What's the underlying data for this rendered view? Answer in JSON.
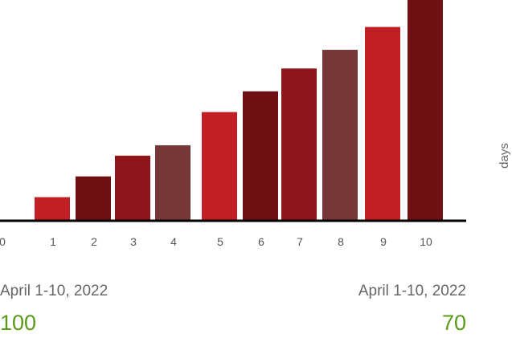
{
  "chart_data": {
    "type": "bar",
    "x_ticks": [
      "0",
      "1",
      "2",
      "3",
      "4",
      "5",
      "6",
      "7",
      "8",
      "9",
      "10"
    ],
    "categories": [
      "1",
      "2",
      "3",
      "4",
      "5",
      "6",
      "7",
      "8",
      "9",
      "10"
    ],
    "values": [
      11,
      21,
      31,
      36,
      52,
      62,
      73,
      82,
      93,
      106
    ],
    "bar_colors": [
      "#c11f24",
      "#6e1014",
      "#8e161b",
      "#763739",
      "#c11f24",
      "#6e1014",
      "#8e161b",
      "#763739",
      "#c11f24",
      "#6e1014"
    ],
    "ylabel": "days",
    "ylim": [
      0,
      106
    ],
    "grid": false,
    "axis_color": "#000000",
    "tick_color": "#555555"
  },
  "stats": [
    {
      "date": "April 1-10, 2022",
      "value": "100"
    },
    {
      "date": "April 1-10, 2022",
      "value": "70"
    }
  ],
  "colors": {
    "accent_value": "#5a9a1a",
    "date_text": "#666666"
  }
}
